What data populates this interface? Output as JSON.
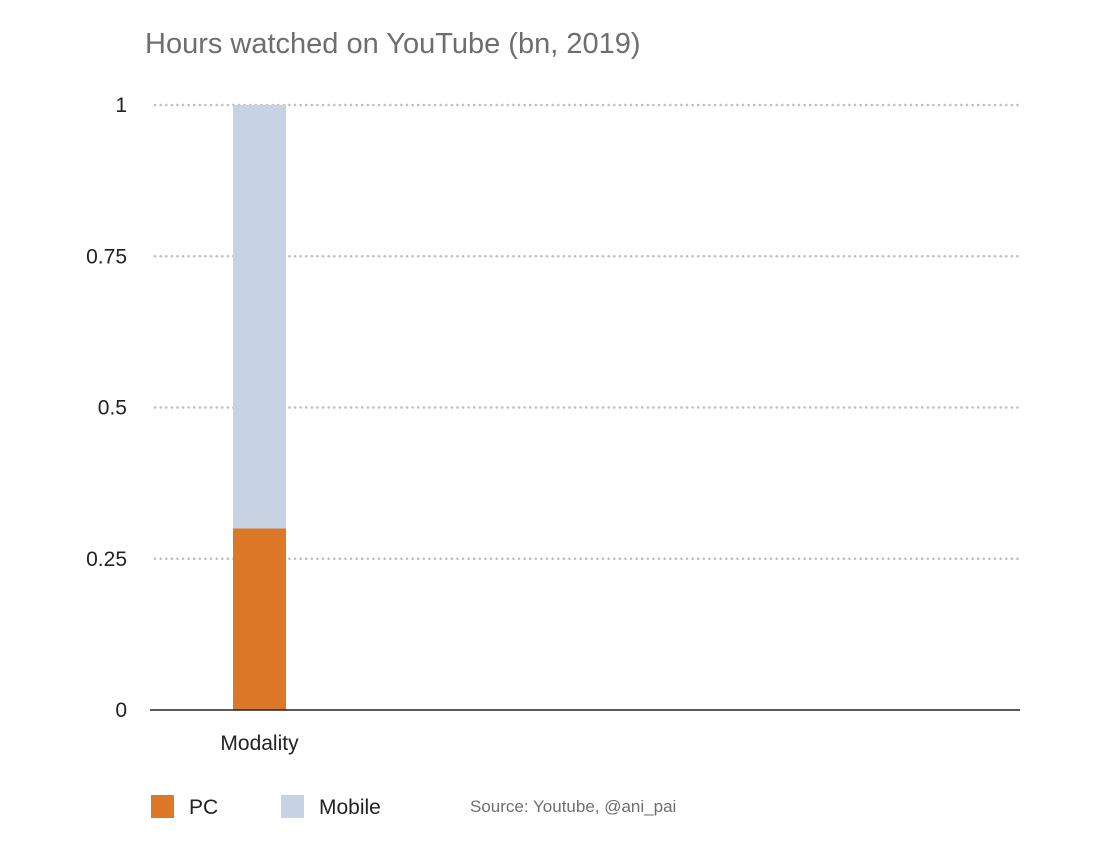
{
  "chart_data": {
    "type": "bar",
    "stacked": true,
    "title": "Hours watched on YouTube (bn, 2019)",
    "xlabel": "",
    "ylabel": "",
    "categories": [
      "Modality"
    ],
    "series": [
      {
        "name": "PC",
        "values": [
          0.3
        ],
        "color": "#dc7828"
      },
      {
        "name": "Mobile",
        "values": [
          0.7
        ],
        "color": "#c7d3e3"
      }
    ],
    "ylim": [
      0,
      1
    ],
    "yticks": [
      {
        "value": 0,
        "label": "0"
      },
      {
        "value": 0.25,
        "label": "0.25"
      },
      {
        "value": 0.5,
        "label": "0.5"
      },
      {
        "value": 0.75,
        "label": "0.75"
      },
      {
        "value": 1,
        "label": "1"
      }
    ],
    "grid": true,
    "legend_position": "bottom-left",
    "source": "Source: Youtube, @ani_pai"
  }
}
